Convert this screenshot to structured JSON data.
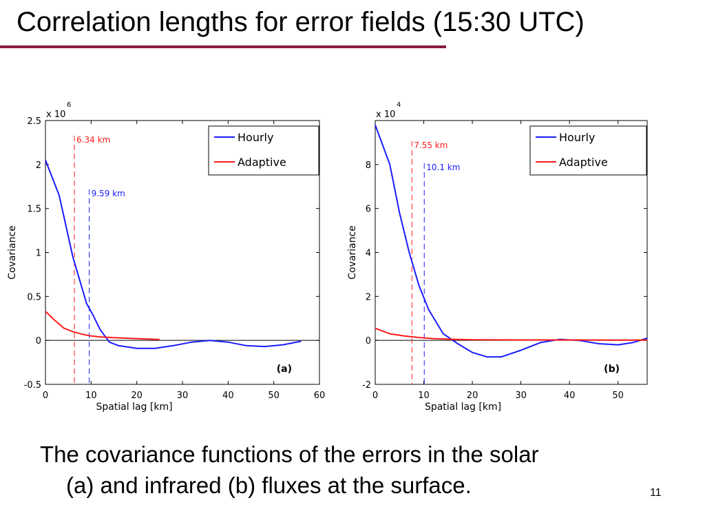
{
  "slide": {
    "title": "Correlation lengths for error fields (15:30 UTC)",
    "caption_line1": "The covariance functions of the errors in the solar",
    "caption_line2": "(a) and infrared (b) fluxes at the surface.",
    "slide_number": "11",
    "colors": {
      "title_rule": "#8b1a3a",
      "hourly": "#1a1aff",
      "adaptive": "#ff1a1a"
    }
  },
  "chart_data": [
    {
      "type": "line",
      "panel_label": "(a)",
      "xlabel": "Spatial lag [km]",
      "ylabel": "Covariance",
      "y_exponent_label": "x 10",
      "y_exponent": "6",
      "xlim": [
        0,
        60
      ],
      "ylim": [
        -0.5,
        2.5
      ],
      "xticks": [
        0,
        10,
        20,
        30,
        40,
        50,
        60
      ],
      "yticks": [
        -0.5,
        0,
        0.5,
        1,
        1.5,
        2,
        2.5
      ],
      "ytick_labels": [
        "-0.5",
        "0",
        "0.5",
        "1",
        "1.5",
        "2",
        "2.5"
      ],
      "grid": false,
      "legend_position": "top-right",
      "series": [
        {
          "name": "Hourly",
          "color": "#1a1aff",
          "x": [
            0,
            3,
            6,
            9,
            10.5,
            12,
            14,
            16,
            20,
            24,
            28,
            32,
            36,
            40,
            44,
            48,
            52,
            56
          ],
          "y": [
            2.05,
            1.65,
            0.95,
            0.42,
            0.28,
            0.12,
            -0.02,
            -0.06,
            -0.09,
            -0.09,
            -0.06,
            -0.02,
            0.0,
            -0.02,
            -0.06,
            -0.07,
            -0.05,
            -0.01
          ]
        },
        {
          "name": "Adaptive",
          "color": "#ff1a1a",
          "x": [
            0,
            2,
            4,
            6,
            8,
            10,
            12,
            15,
            20,
            25
          ],
          "y": [
            0.33,
            0.23,
            0.14,
            0.1,
            0.07,
            0.05,
            0.04,
            0.03,
            0.02,
            0.01
          ]
        }
      ],
      "markers": [
        {
          "x": 6.34,
          "label": "6.34 km",
          "color": "#ff1a1a",
          "label_y": 2.25
        },
        {
          "x": 9.59,
          "label": "9.59 km",
          "color": "#1a1aff",
          "label_y": 1.64
        }
      ],
      "baseline": 0
    },
    {
      "type": "line",
      "panel_label": "(b)",
      "xlabel": "Spatial lag [km]",
      "ylabel": "Covariance",
      "y_exponent_label": "x 10",
      "y_exponent": "4",
      "xlim": [
        0,
        56
      ],
      "ylim": [
        -2,
        10
      ],
      "xticks": [
        0,
        10,
        20,
        30,
        40,
        50
      ],
      "yticks": [
        -2,
        0,
        2,
        4,
        6,
        8
      ],
      "ytick_labels": [
        "-2",
        "0",
        "2",
        "4",
        "6",
        "8"
      ],
      "grid": false,
      "legend_position": "top-right",
      "series": [
        {
          "name": "Hourly",
          "color": "#1a1aff",
          "x": [
            0,
            3,
            5,
            7,
            9,
            11,
            14,
            17,
            20,
            23,
            26,
            30,
            34,
            38,
            42,
            46,
            50,
            53,
            56
          ],
          "y": [
            9.8,
            8.0,
            5.8,
            4.0,
            2.5,
            1.4,
            0.3,
            -0.15,
            -0.55,
            -0.75,
            -0.75,
            -0.45,
            -0.1,
            0.05,
            0.0,
            -0.15,
            -0.2,
            -0.1,
            0.1
          ]
        },
        {
          "name": "Adaptive",
          "color": "#ff1a1a",
          "x": [
            0,
            3,
            6,
            9,
            12,
            16,
            20,
            30,
            40,
            50,
            56
          ],
          "y": [
            0.55,
            0.3,
            0.2,
            0.13,
            0.08,
            0.05,
            0.03,
            0.02,
            0.02,
            0.01,
            0.01
          ]
        }
      ],
      "markers": [
        {
          "x": 7.55,
          "label": "7.55 km",
          "color": "#ff1a1a",
          "label_y": 8.75
        },
        {
          "x": 10.1,
          "label": "10.1 km",
          "color": "#1a1aff",
          "label_y": 7.75
        }
      ],
      "baseline": 0
    }
  ]
}
